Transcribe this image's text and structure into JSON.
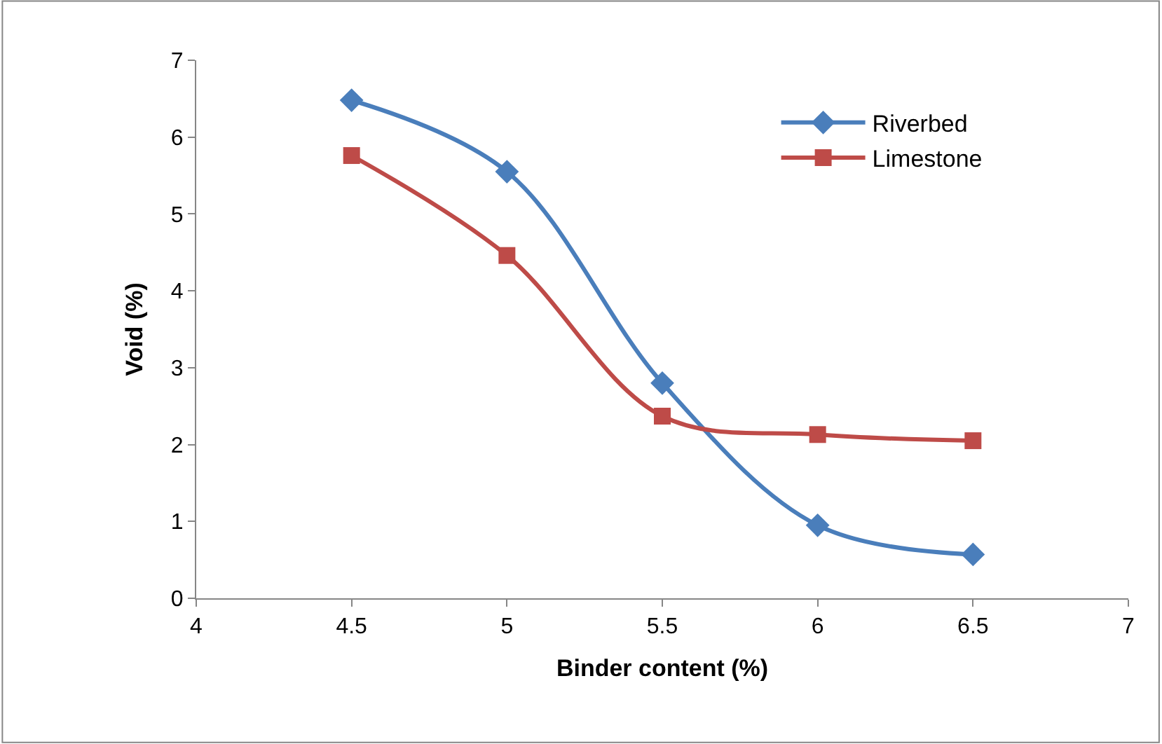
{
  "chart_data": {
    "type": "line",
    "xlabel": "Binder content (%)",
    "ylabel": "Void (%)",
    "x": [
      4.5,
      5,
      5.5,
      6,
      6.5
    ],
    "series": [
      {
        "name": "Riverbed",
        "color": "#4a7ebb",
        "marker": "diamond",
        "values": [
          6.48,
          5.55,
          2.8,
          0.95,
          0.57
        ]
      },
      {
        "name": "Limestone",
        "color": "#be4b48",
        "marker": "square",
        "values": [
          5.76,
          4.46,
          2.37,
          2.13,
          2.05
        ]
      }
    ],
    "xlim": [
      4,
      7
    ],
    "xticks": [
      4,
      4.5,
      5,
      5.5,
      6,
      6.5,
      7
    ],
    "ylim": [
      0,
      7
    ],
    "yticks": [
      0,
      1,
      2,
      3,
      4,
      5,
      6,
      7
    ],
    "legend": "top right",
    "line_style": "solid"
  }
}
